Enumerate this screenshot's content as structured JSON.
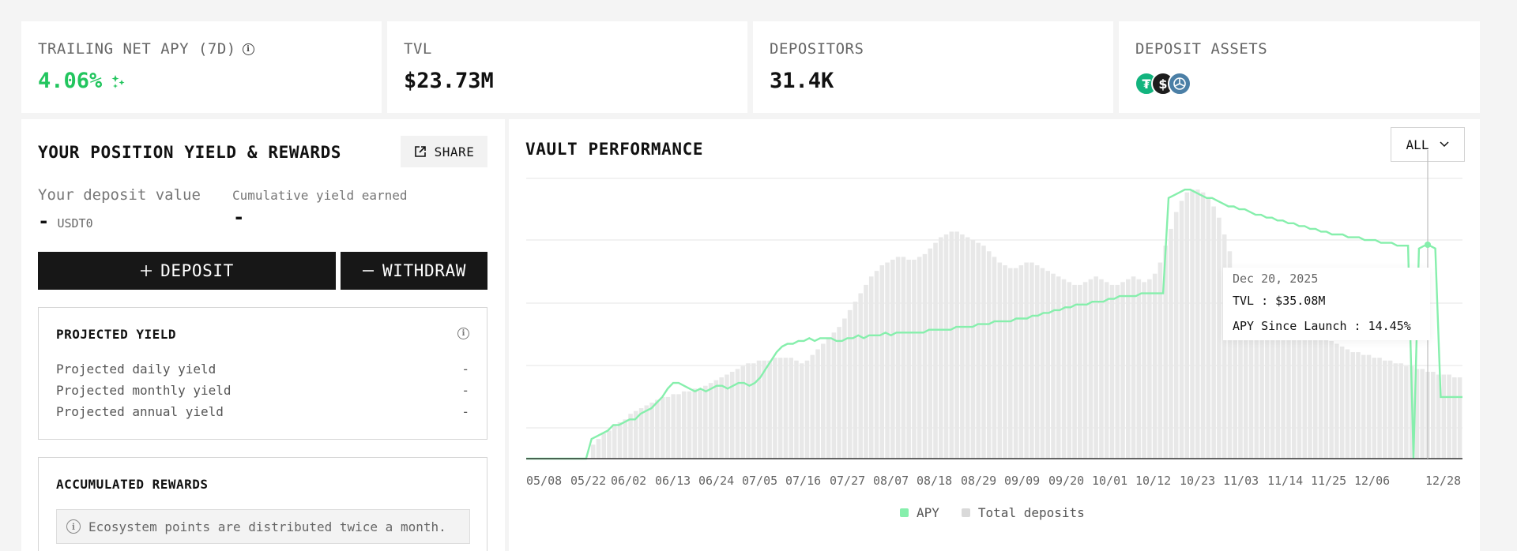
{
  "stats": {
    "apy": {
      "label": "TRAILING NET APY (7D)",
      "value": "4.06%"
    },
    "tvl": {
      "label": "TVL",
      "value": "$23.73M"
    },
    "depositors": {
      "label": "DEPOSITORS",
      "value": "31.4K"
    },
    "assets": {
      "label": "DEPOSIT ASSETS",
      "icons": [
        "usdt0-token-icon",
        "usds-token-icon",
        "lp-token-icon"
      ],
      "colors": [
        "#12b47e",
        "#1d1d1d",
        "#4b7fa6"
      ]
    }
  },
  "position": {
    "title": "YOUR POSITION YIELD & REWARDS",
    "share_label": "SHARE",
    "deposit_value_label": "Your deposit value",
    "deposit_value": "-",
    "deposit_unit": "USDT0",
    "cumulative_label": "Cumulative yield earned",
    "cumulative_value": "-",
    "deposit_button": "DEPOSIT",
    "withdraw_button": "WITHDRAW"
  },
  "projected": {
    "title": "PROJECTED YIELD",
    "rows": [
      {
        "label": "Projected daily yield",
        "value": "-"
      },
      {
        "label": "Projected monthly yield",
        "value": "-"
      },
      {
        "label": "Projected annual yield",
        "value": "-"
      }
    ]
  },
  "rewards": {
    "title": "ACCUMULATED REWARDS",
    "note": "Ecosystem points are distributed twice a month."
  },
  "performance": {
    "title": "VAULT PERFORMANCE",
    "range": "ALL",
    "tooltip": {
      "date": "Dec 20, 2025",
      "tvl": "TVL : $35.08M",
      "apy": "APY Since Launch : 14.45%"
    }
  },
  "chart_data": {
    "type": "bar",
    "x_ticks": [
      "05/08",
      "05/22",
      "06/02",
      "06/13",
      "06/24",
      "07/05",
      "07/16",
      "07/27",
      "08/07",
      "08/18",
      "08/29",
      "09/09",
      "09/20",
      "10/01",
      "10/12",
      "10/23",
      "11/03",
      "11/14",
      "11/25",
      "12/06",
      "12/28"
    ],
    "series": [
      {
        "name": "APY",
        "type": "line",
        "color": "#86efac"
      },
      {
        "name": "Total deposits",
        "type": "bar",
        "color": "#d9d9d9"
      }
    ],
    "deposits_profile": [
      0,
      0,
      0,
      0,
      0,
      0,
      0,
      0,
      0,
      0,
      0,
      0,
      0.05,
      0.07,
      0.09,
      0.1,
      0.12,
      0.13,
      0.14,
      0.16,
      0.17,
      0.18,
      0.19,
      0.2,
      0.21,
      0.22,
      0.22,
      0.23,
      0.23,
      0.24,
      0.24,
      0.25,
      0.25,
      0.26,
      0.27,
      0.28,
      0.29,
      0.3,
      0.31,
      0.32,
      0.33,
      0.34,
      0.34,
      0.35,
      0.35,
      0.35,
      0.36,
      0.36,
      0.36,
      0.36,
      0.35,
      0.34,
      0.35,
      0.37,
      0.39,
      0.41,
      0.43,
      0.45,
      0.47,
      0.5,
      0.53,
      0.56,
      0.59,
      0.62,
      0.65,
      0.67,
      0.69,
      0.7,
      0.71,
      0.72,
      0.72,
      0.71,
      0.71,
      0.72,
      0.73,
      0.75,
      0.77,
      0.79,
      0.8,
      0.81,
      0.81,
      0.8,
      0.79,
      0.78,
      0.77,
      0.76,
      0.74,
      0.72,
      0.7,
      0.69,
      0.68,
      0.68,
      0.69,
      0.7,
      0.7,
      0.69,
      0.68,
      0.67,
      0.66,
      0.65,
      0.64,
      0.63,
      0.62,
      0.62,
      0.63,
      0.64,
      0.65,
      0.64,
      0.63,
      0.62,
      0.62,
      0.63,
      0.64,
      0.65,
      0.64,
      0.63,
      0.64,
      0.66,
      0.7,
      0.76,
      0.82,
      0.88,
      0.92,
      0.95,
      0.96,
      0.96,
      0.95,
      0.93,
      0.9,
      0.86,
      0.8,
      0.74,
      0.68,
      0.63,
      0.6,
      0.58,
      0.56,
      0.55,
      0.54,
      0.53,
      0.52,
      0.51,
      0.5,
      0.49,
      0.48,
      0.47,
      0.46,
      0.45,
      0.44,
      0.43,
      0.42,
      0.41,
      0.4,
      0.39,
      0.38,
      0.38,
      0.37,
      0.37,
      0.36,
      0.36,
      0.35,
      0.35,
      0.34,
      0.34,
      0.33,
      0.33,
      0.32,
      0.32,
      0.31,
      0.31,
      0.3,
      0.3,
      0.3,
      0.29,
      0.29
    ],
    "apy_profile": [
      0,
      0,
      0,
      0,
      0,
      0,
      0,
      0,
      0,
      0,
      0,
      0,
      0.07,
      0.08,
      0.09,
      0.1,
      0.12,
      0.12,
      0.13,
      0.14,
      0.14,
      0.16,
      0.17,
      0.18,
      0.2,
      0.22,
      0.25,
      0.27,
      0.27,
      0.26,
      0.25,
      0.24,
      0.25,
      0.24,
      0.25,
      0.26,
      0.26,
      0.25,
      0.26,
      0.27,
      0.27,
      0.26,
      0.27,
      0.29,
      0.32,
      0.35,
      0.38,
      0.4,
      0.41,
      0.41,
      0.42,
      0.42,
      0.43,
      0.42,
      0.43,
      0.43,
      0.43,
      0.42,
      0.42,
      0.43,
      0.43,
      0.44,
      0.43,
      0.44,
      0.44,
      0.44,
      0.45,
      0.44,
      0.45,
      0.45,
      0.45,
      0.45,
      0.45,
      0.45,
      0.46,
      0.46,
      0.46,
      0.46,
      0.46,
      0.47,
      0.47,
      0.47,
      0.47,
      0.48,
      0.48,
      0.48,
      0.49,
      0.49,
      0.49,
      0.49,
      0.5,
      0.5,
      0.5,
      0.51,
      0.51,
      0.52,
      0.52,
      0.53,
      0.53,
      0.54,
      0.54,
      0.55,
      0.55,
      0.55,
      0.56,
      0.56,
      0.56,
      0.57,
      0.57,
      0.58,
      0.58,
      0.58,
      0.58,
      0.59,
      0.59,
      0.59,
      0.59,
      0.59,
      0.93,
      0.94,
      0.95,
      0.96,
      0.96,
      0.95,
      0.94,
      0.93,
      0.93,
      0.92,
      0.91,
      0.9,
      0.9,
      0.89,
      0.89,
      0.88,
      0.87,
      0.87,
      0.86,
      0.86,
      0.85,
      0.85,
      0.84,
      0.84,
      0.83,
      0.83,
      0.82,
      0.82,
      0.81,
      0.81,
      0.8,
      0.8,
      0.8,
      0.79,
      0.79,
      0.79,
      0.78,
      0.78,
      0.78,
      0.77,
      0.77,
      0.77,
      0.76,
      0.76,
      0.76,
      0.0,
      0.75,
      0.76,
      0.76,
      0.75,
      0.22,
      0.22,
      0.22,
      0.22,
      0.22
    ]
  }
}
